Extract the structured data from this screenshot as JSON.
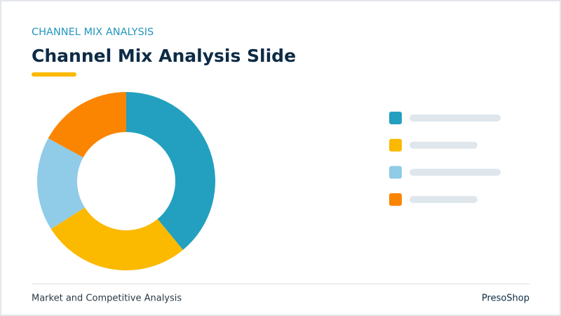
{
  "chart_data": {
    "type": "pie",
    "donut": true,
    "kicker": "CHANNEL MIX ANALYSIS",
    "title": "Channel Mix Analysis Slide",
    "categories": [
      null,
      null,
      null,
      null
    ],
    "values": [
      39,
      27,
      17,
      17
    ],
    "colors": [
      "#23a0c0",
      "#fbb900",
      "#90cbe8",
      "#fb8500"
    ],
    "legend": "right"
  },
  "footer": {
    "left": "Market and Competitive Analysis",
    "right": "PresoShop"
  }
}
